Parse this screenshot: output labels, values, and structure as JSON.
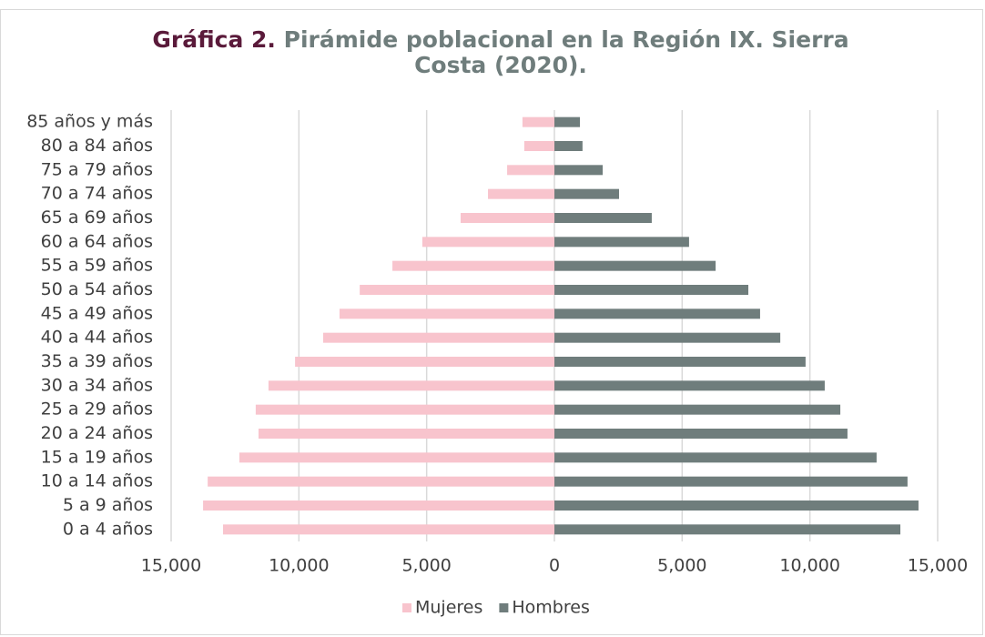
{
  "chart_data": {
    "type": "bar",
    "orientation": "horizontal",
    "title_prefix": "Gráfica 2.",
    "title": "Pirámide poblacional en la Región IX. Sierra Costa (2020).",
    "categories": [
      "85 años y más",
      "80 a 84 años",
      "75 a 79 años",
      "70 a 74 años",
      "65 a 69 años",
      "60 a 64 años",
      "55 a 59 años",
      "50 a 54 años",
      "45 a 49 años",
      "40 a 44 años",
      "35 a 39 años",
      "30 a 34 años",
      "25 a 29 años",
      "20 a 24 años",
      "15 a 19 años",
      "10 a 14 años",
      "5 a 9 años",
      "0 a 4 años"
    ],
    "series": [
      {
        "name": "Mujeres",
        "color": "#f8c4cd",
        "values": [
          -1250,
          -1180,
          -1850,
          -2600,
          -3670,
          -5170,
          -6340,
          -7620,
          -8410,
          -9050,
          -10150,
          -11190,
          -11690,
          -11580,
          -12330,
          -13570,
          -13750,
          -12970
        ]
      },
      {
        "name": "Hombres",
        "color": "#6f7d7c",
        "values": [
          1000,
          1100,
          1890,
          2530,
          3810,
          5270,
          6310,
          7590,
          8050,
          8840,
          9830,
          10580,
          11190,
          11470,
          12610,
          13820,
          14250,
          13540
        ]
      }
    ],
    "xlim": [
      -15000,
      15000
    ],
    "xticks": [
      {
        "value": -15000,
        "label": "15,000"
      },
      {
        "value": -10000,
        "label": "10,000"
      },
      {
        "value": -5000,
        "label": "5,000"
      },
      0,
      {
        "value": 5000,
        "label": "5,000"
      },
      {
        "value": 10000,
        "label": "10,000"
      },
      {
        "value": 15000,
        "label": "15,000"
      }
    ],
    "grid": true,
    "legend": "bottom"
  }
}
